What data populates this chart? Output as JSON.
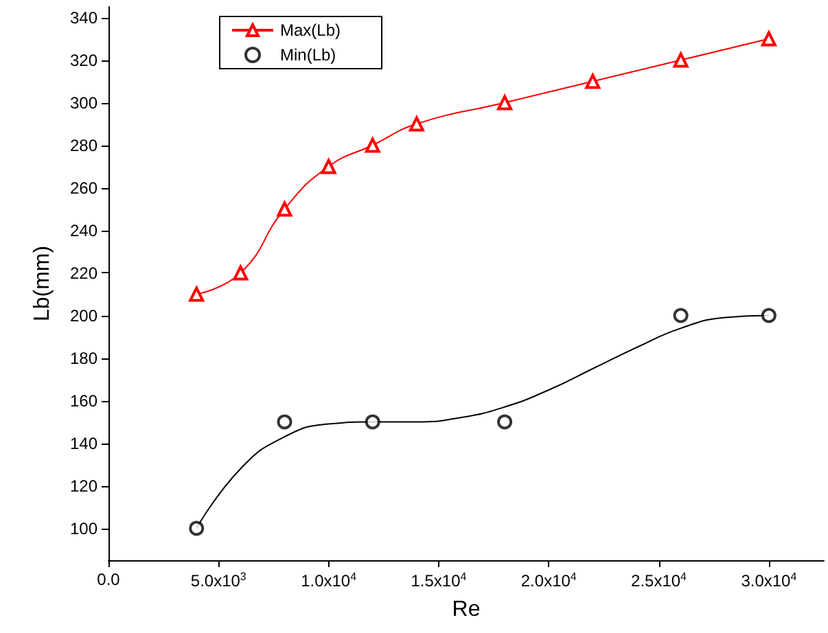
{
  "chart_data": {
    "type": "line",
    "xlabel": "Re",
    "ylabel": "Lb(mm)",
    "xlim": [
      0,
      32500
    ],
    "ylim": [
      85,
      345
    ],
    "xticks": [
      {
        "value": 0,
        "label": "0.0"
      },
      {
        "value": 5000,
        "label": "5.0x10$^{3}$"
      },
      {
        "value": 10000,
        "label": "1.0x10$^{4}$"
      },
      {
        "value": 15000,
        "label": "1.5x10$^{4}$"
      },
      {
        "value": 20000,
        "label": "2.0x10$^{4}$"
      },
      {
        "value": 25000,
        "label": "2.5x10$^{4}$"
      },
      {
        "value": 30000,
        "label": "3.0x10$^{4}$"
      }
    ],
    "yticks": [
      100,
      120,
      140,
      160,
      180,
      200,
      220,
      240,
      260,
      280,
      300,
      320,
      340
    ],
    "grid": false,
    "legend": "top left",
    "series": [
      {
        "name": "Max(Lb)",
        "marker": "triangle",
        "color": "#ff0000",
        "x": [
          4000,
          6000,
          8000,
          10000,
          12000,
          14000,
          18000,
          22000,
          26000,
          30000
        ],
        "values": [
          210,
          220,
          250,
          270,
          280,
          290,
          300,
          310,
          320,
          330
        ]
      },
      {
        "name": "Min(Lb)",
        "type": "scatter",
        "marker": "circle",
        "color": "#000000",
        "x": [
          4000,
          8000,
          12000,
          18000,
          26000,
          30000
        ],
        "values": [
          100,
          150,
          150,
          150,
          200,
          200
        ]
      },
      {
        "marker": "none",
        "color": "#000000",
        "x": [
          4000,
          6000,
          8000,
          10000,
          12000,
          14000,
          16000,
          18000,
          20000,
          22000,
          24000,
          26000,
          28000,
          30000
        ],
        "values": [
          100,
          128,
          143,
          149,
          150,
          150,
          152,
          157,
          165,
          175,
          185,
          194,
          199,
          200
        ]
      }
    ]
  }
}
